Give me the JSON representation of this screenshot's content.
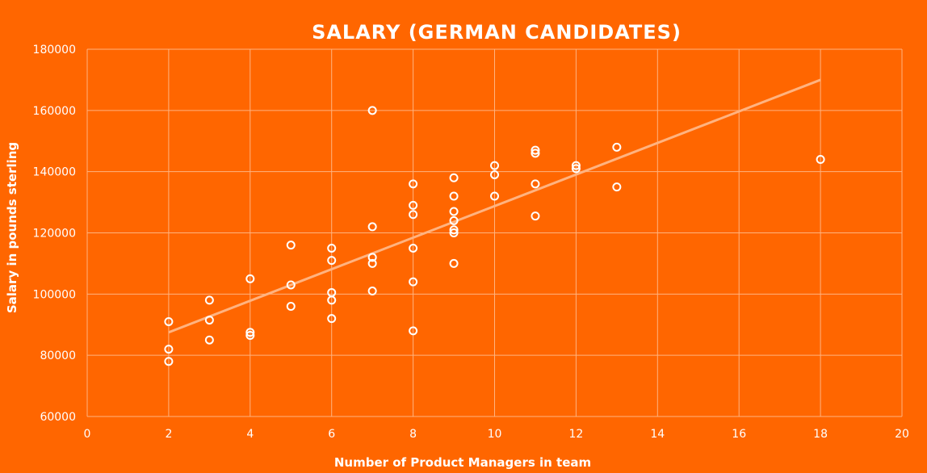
{
  "chart_data": {
    "type": "scatter",
    "title": "SALARY (GERMAN CANDIDATES)",
    "xlabel": "Number of Product Managers in team",
    "ylabel": "Salary in pounds sterling",
    "xlim": [
      0,
      20
    ],
    "ylim": [
      60000,
      180000
    ],
    "x_ticks": [
      0,
      2,
      4,
      6,
      8,
      10,
      12,
      14,
      16,
      18,
      20
    ],
    "y_ticks": [
      60000,
      80000,
      100000,
      120000,
      140000,
      160000,
      180000
    ],
    "grid": true,
    "legend": "none",
    "colors": {
      "background": "#FF6600",
      "points": "#FFFFFF",
      "trendline": "#FFB380",
      "grid": "#FFB380"
    },
    "points": [
      {
        "x": 2,
        "y": 91000
      },
      {
        "x": 2,
        "y": 82000
      },
      {
        "x": 2,
        "y": 78000
      },
      {
        "x": 3,
        "y": 98000
      },
      {
        "x": 3,
        "y": 91500
      },
      {
        "x": 3,
        "y": 85000
      },
      {
        "x": 4,
        "y": 105000
      },
      {
        "x": 4,
        "y": 87500
      },
      {
        "x": 4,
        "y": 86500
      },
      {
        "x": 5,
        "y": 116000
      },
      {
        "x": 5,
        "y": 103000
      },
      {
        "x": 5,
        "y": 96000
      },
      {
        "x": 6,
        "y": 115000
      },
      {
        "x": 6,
        "y": 111000
      },
      {
        "x": 6,
        "y": 100500
      },
      {
        "x": 6,
        "y": 98000
      },
      {
        "x": 6,
        "y": 92000
      },
      {
        "x": 7,
        "y": 160000
      },
      {
        "x": 7,
        "y": 122000
      },
      {
        "x": 7,
        "y": 112000
      },
      {
        "x": 7,
        "y": 110000
      },
      {
        "x": 7,
        "y": 101000
      },
      {
        "x": 8,
        "y": 136000
      },
      {
        "x": 8,
        "y": 129000
      },
      {
        "x": 8,
        "y": 126000
      },
      {
        "x": 8,
        "y": 115000
      },
      {
        "x": 8,
        "y": 104000
      },
      {
        "x": 8,
        "y": 88000
      },
      {
        "x": 9,
        "y": 138000
      },
      {
        "x": 9,
        "y": 132000
      },
      {
        "x": 9,
        "y": 127000
      },
      {
        "x": 9,
        "y": 124000
      },
      {
        "x": 9,
        "y": 121000
      },
      {
        "x": 9,
        "y": 120000
      },
      {
        "x": 9,
        "y": 110000
      },
      {
        "x": 10,
        "y": 142000
      },
      {
        "x": 10,
        "y": 139000
      },
      {
        "x": 10,
        "y": 132000
      },
      {
        "x": 11,
        "y": 147000
      },
      {
        "x": 11,
        "y": 146000
      },
      {
        "x": 11,
        "y": 136000
      },
      {
        "x": 11,
        "y": 125500
      },
      {
        "x": 12,
        "y": 142000
      },
      {
        "x": 12,
        "y": 141000
      },
      {
        "x": 13,
        "y": 148000
      },
      {
        "x": 13,
        "y": 135000
      },
      {
        "x": 18,
        "y": 144000
      }
    ],
    "trendline": {
      "type": "linear",
      "x_start": 2,
      "y_start": 87500,
      "x_end": 18,
      "y_end": 170000
    }
  }
}
